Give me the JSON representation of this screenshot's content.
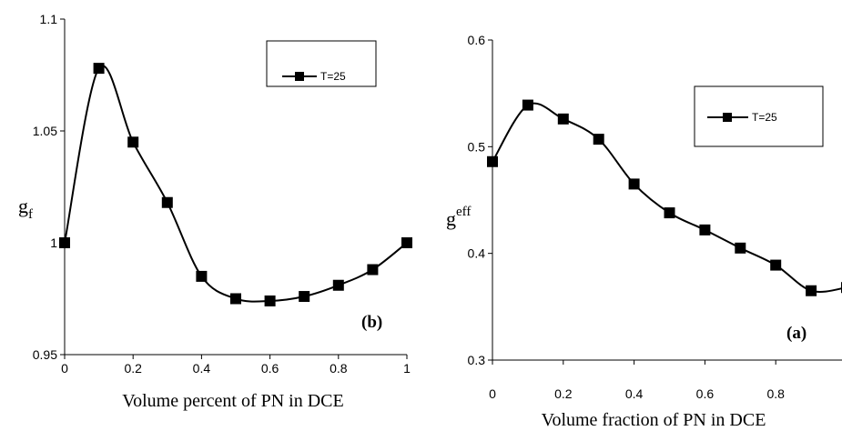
{
  "chart_data": [
    {
      "type": "line",
      "panel_label": "(b)",
      "xlabel": "Volume percent of PN in DCE",
      "ylabel": "g",
      "ylabel_subscript": "f",
      "xlim": [
        0,
        1
      ],
      "ylim": [
        0.95,
        1.1
      ],
      "xticks": [
        0,
        0.2,
        0.4,
        0.6,
        0.8,
        1
      ],
      "xtick_labels": [
        "0",
        "0.2",
        "0.4",
        "0.6",
        "0.8",
        "1"
      ],
      "yticks": [
        0.95,
        1,
        1.05,
        1.1
      ],
      "ytick_labels": [
        "0.95",
        "1",
        "1.05",
        "1.1"
      ],
      "legend_position": "top-right",
      "marker": "square",
      "line_style": "smooth",
      "grid": false,
      "series": [
        {
          "name": "T=25",
          "x": [
            0,
            0.1,
            0.2,
            0.3,
            0.4,
            0.5,
            0.6,
            0.7,
            0.8,
            0.9,
            1.0
          ],
          "y": [
            1.0,
            1.078,
            1.045,
            1.018,
            0.985,
            0.975,
            0.974,
            0.976,
            0.981,
            0.988,
            1.0
          ]
        }
      ]
    },
    {
      "type": "line",
      "panel_label": "(a)",
      "xlabel": "Volume fraction of  PN in DCE",
      "ylabel": "g",
      "ylabel_superscript": "eff",
      "xlim": [
        0,
        1
      ],
      "ylim": [
        0.3,
        0.6
      ],
      "xticks": [
        0,
        0.2,
        0.4,
        0.6,
        0.8
      ],
      "xtick_labels": [
        "0",
        "0.2",
        "0.4",
        "0.6",
        "0.8"
      ],
      "yticks": [
        0.3,
        0.4,
        0.5,
        0.6
      ],
      "ytick_labels": [
        "0.3",
        "0.4",
        "0.5",
        "0.6"
      ],
      "legend_position": "top-right",
      "marker": "square",
      "line_style": "smooth",
      "grid": false,
      "series": [
        {
          "name": "T=25",
          "x": [
            0,
            0.1,
            0.2,
            0.3,
            0.4,
            0.5,
            0.6,
            0.7,
            0.8,
            0.9,
            1.0
          ],
          "y": [
            0.486,
            0.539,
            0.526,
            0.507,
            0.465,
            0.438,
            0.422,
            0.405,
            0.389,
            0.365,
            0.368
          ]
        }
      ]
    }
  ]
}
